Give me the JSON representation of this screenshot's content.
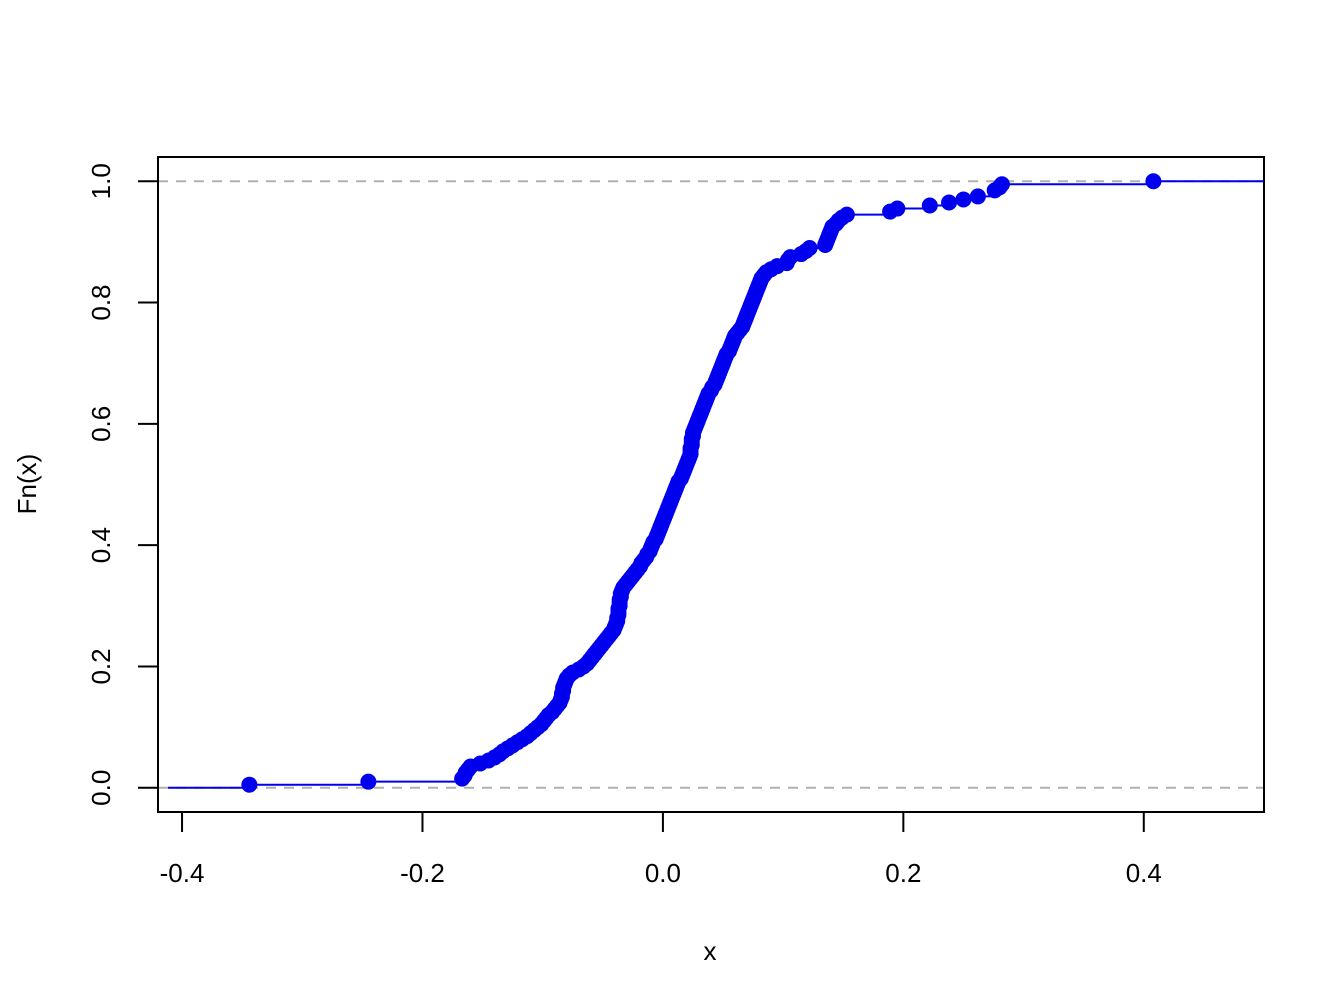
{
  "chart_data": {
    "type": "step",
    "title": "",
    "xlabel": "x",
    "ylabel": "Fn(x)",
    "xlim": [
      -0.42,
      0.5
    ],
    "ylim": [
      -0.04,
      1.04
    ],
    "x_ticks": [
      -0.4,
      -0.2,
      0.0,
      0.2,
      0.4
    ],
    "x_tick_labels": [
      "-0.4",
      "-0.2",
      "0.0",
      "0.2",
      "0.4"
    ],
    "y_ticks": [
      0.0,
      0.2,
      0.4,
      0.6,
      0.8,
      1.0
    ],
    "y_tick_labels": [
      "0.0",
      "0.2",
      "0.4",
      "0.6",
      "0.8",
      "1.0"
    ],
    "reference_lines_y": [
      0.0,
      1.0
    ],
    "grid": false,
    "legend": "none",
    "colors": {
      "series": "#0000ee",
      "reference": "#b0b0b0",
      "axis": "#000000"
    },
    "points": [
      [
        -0.344,
        0.005
      ],
      [
        -0.245,
        0.01
      ],
      [
        -0.167,
        0.015
      ],
      [
        -0.165,
        0.02
      ],
      [
        -0.164,
        0.025
      ],
      [
        -0.162,
        0.03
      ],
      [
        -0.16,
        0.035
      ],
      [
        -0.152,
        0.04
      ],
      [
        -0.145,
        0.045
      ],
      [
        -0.14,
        0.05
      ],
      [
        -0.136,
        0.055
      ],
      [
        -0.133,
        0.06
      ],
      [
        -0.129,
        0.065
      ],
      [
        -0.125,
        0.07
      ],
      [
        -0.121,
        0.075
      ],
      [
        -0.117,
        0.08
      ],
      [
        -0.113,
        0.085
      ],
      [
        -0.11,
        0.09
      ],
      [
        -0.107,
        0.095
      ],
      [
        -0.104,
        0.1
      ],
      [
        -0.101,
        0.105
      ],
      [
        -0.099,
        0.11
      ],
      [
        -0.097,
        0.115
      ],
      [
        -0.095,
        0.12
      ],
      [
        -0.092,
        0.125
      ],
      [
        -0.09,
        0.13
      ],
      [
        -0.088,
        0.135
      ],
      [
        -0.086,
        0.14
      ],
      [
        -0.085,
        0.145
      ],
      [
        -0.084,
        0.15
      ],
      [
        -0.084,
        0.155
      ],
      [
        -0.083,
        0.16
      ],
      [
        -0.083,
        0.165
      ],
      [
        -0.082,
        0.17
      ],
      [
        -0.081,
        0.175
      ],
      [
        -0.08,
        0.18
      ],
      [
        -0.078,
        0.185
      ],
      [
        -0.075,
        0.19
      ],
      [
        -0.07,
        0.195
      ],
      [
        -0.066,
        0.2
      ],
      [
        -0.063,
        0.205
      ],
      [
        -0.061,
        0.21
      ],
      [
        -0.059,
        0.215
      ],
      [
        -0.057,
        0.22
      ],
      [
        -0.055,
        0.225
      ],
      [
        -0.053,
        0.23
      ],
      [
        -0.051,
        0.235
      ],
      [
        -0.049,
        0.24
      ],
      [
        -0.047,
        0.245
      ],
      [
        -0.045,
        0.25
      ],
      [
        -0.043,
        0.255
      ],
      [
        -0.041,
        0.26
      ],
      [
        -0.04,
        0.265
      ],
      [
        -0.039,
        0.27
      ],
      [
        -0.038,
        0.275
      ],
      [
        -0.038,
        0.28
      ],
      [
        -0.037,
        0.285
      ],
      [
        -0.037,
        0.29
      ],
      [
        -0.037,
        0.295
      ],
      [
        -0.036,
        0.3
      ],
      [
        -0.036,
        0.305
      ],
      [
        -0.036,
        0.31
      ],
      [
        -0.035,
        0.315
      ],
      [
        -0.035,
        0.32
      ],
      [
        -0.034,
        0.325
      ],
      [
        -0.033,
        0.33
      ],
      [
        -0.031,
        0.335
      ],
      [
        -0.029,
        0.34
      ],
      [
        -0.027,
        0.345
      ],
      [
        -0.025,
        0.35
      ],
      [
        -0.023,
        0.355
      ],
      [
        -0.021,
        0.36
      ],
      [
        -0.019,
        0.365
      ],
      [
        -0.018,
        0.37
      ],
      [
        -0.016,
        0.375
      ],
      [
        -0.014,
        0.38
      ],
      [
        -0.013,
        0.385
      ],
      [
        -0.011,
        0.39
      ],
      [
        -0.01,
        0.395
      ],
      [
        -0.009,
        0.4
      ],
      [
        -0.008,
        0.405
      ],
      [
        -0.006,
        0.41
      ],
      [
        -0.005,
        0.415
      ],
      [
        -0.004,
        0.42
      ],
      [
        -0.003,
        0.425
      ],
      [
        -0.002,
        0.43
      ],
      [
        -0.001,
        0.435
      ],
      [
        0.0,
        0.44
      ],
      [
        0.001,
        0.445
      ],
      [
        0.002,
        0.45
      ],
      [
        0.003,
        0.455
      ],
      [
        0.004,
        0.46
      ],
      [
        0.005,
        0.465
      ],
      [
        0.006,
        0.47
      ],
      [
        0.007,
        0.475
      ],
      [
        0.008,
        0.48
      ],
      [
        0.009,
        0.485
      ],
      [
        0.01,
        0.49
      ],
      [
        0.011,
        0.495
      ],
      [
        0.012,
        0.5
      ],
      [
        0.013,
        0.505
      ],
      [
        0.015,
        0.51
      ],
      [
        0.016,
        0.515
      ],
      [
        0.017,
        0.52
      ],
      [
        0.018,
        0.525
      ],
      [
        0.019,
        0.53
      ],
      [
        0.02,
        0.535
      ],
      [
        0.021,
        0.54
      ],
      [
        0.022,
        0.545
      ],
      [
        0.023,
        0.55
      ],
      [
        0.023,
        0.555
      ],
      [
        0.023,
        0.56
      ],
      [
        0.024,
        0.565
      ],
      [
        0.024,
        0.57
      ],
      [
        0.024,
        0.575
      ],
      [
        0.025,
        0.58
      ],
      [
        0.025,
        0.585
      ],
      [
        0.026,
        0.59
      ],
      [
        0.027,
        0.595
      ],
      [
        0.028,
        0.6
      ],
      [
        0.029,
        0.605
      ],
      [
        0.03,
        0.61
      ],
      [
        0.031,
        0.615
      ],
      [
        0.032,
        0.62
      ],
      [
        0.033,
        0.625
      ],
      [
        0.034,
        0.63
      ],
      [
        0.035,
        0.635
      ],
      [
        0.036,
        0.64
      ],
      [
        0.037,
        0.645
      ],
      [
        0.038,
        0.65
      ],
      [
        0.04,
        0.655
      ],
      [
        0.041,
        0.66
      ],
      [
        0.043,
        0.665
      ],
      [
        0.044,
        0.67
      ],
      [
        0.045,
        0.675
      ],
      [
        0.046,
        0.68
      ],
      [
        0.047,
        0.685
      ],
      [
        0.048,
        0.69
      ],
      [
        0.049,
        0.695
      ],
      [
        0.05,
        0.7
      ],
      [
        0.051,
        0.705
      ],
      [
        0.052,
        0.71
      ],
      [
        0.053,
        0.715
      ],
      [
        0.055,
        0.72
      ],
      [
        0.056,
        0.725
      ],
      [
        0.057,
        0.73
      ],
      [
        0.058,
        0.735
      ],
      [
        0.059,
        0.74
      ],
      [
        0.06,
        0.745
      ],
      [
        0.062,
        0.75
      ],
      [
        0.064,
        0.755
      ],
      [
        0.066,
        0.76
      ],
      [
        0.067,
        0.765
      ],
      [
        0.068,
        0.77
      ],
      [
        0.069,
        0.775
      ],
      [
        0.07,
        0.78
      ],
      [
        0.071,
        0.785
      ],
      [
        0.072,
        0.79
      ],
      [
        0.073,
        0.795
      ],
      [
        0.074,
        0.8
      ],
      [
        0.075,
        0.805
      ],
      [
        0.076,
        0.81
      ],
      [
        0.077,
        0.815
      ],
      [
        0.078,
        0.82
      ],
      [
        0.079,
        0.825
      ],
      [
        0.08,
        0.83
      ],
      [
        0.081,
        0.835
      ],
      [
        0.082,
        0.84
      ],
      [
        0.084,
        0.845
      ],
      [
        0.086,
        0.85
      ],
      [
        0.09,
        0.855
      ],
      [
        0.095,
        0.86
      ],
      [
        0.103,
        0.865
      ],
      [
        0.104,
        0.87
      ],
      [
        0.106,
        0.875
      ],
      [
        0.115,
        0.88
      ],
      [
        0.119,
        0.885
      ],
      [
        0.122,
        0.89
      ],
      [
        0.135,
        0.895
      ],
      [
        0.136,
        0.9
      ],
      [
        0.137,
        0.905
      ],
      [
        0.138,
        0.91
      ],
      [
        0.139,
        0.915
      ],
      [
        0.14,
        0.92
      ],
      [
        0.141,
        0.925
      ],
      [
        0.144,
        0.93
      ],
      [
        0.146,
        0.935
      ],
      [
        0.149,
        0.94
      ],
      [
        0.153,
        0.945
      ],
      [
        0.189,
        0.95
      ],
      [
        0.195,
        0.955
      ],
      [
        0.222,
        0.96
      ],
      [
        0.238,
        0.965
      ],
      [
        0.25,
        0.97
      ],
      [
        0.262,
        0.975
      ],
      [
        0.276,
        0.985
      ],
      [
        0.28,
        0.99
      ],
      [
        0.282,
        0.995
      ],
      [
        0.408,
        1.0
      ]
    ]
  }
}
